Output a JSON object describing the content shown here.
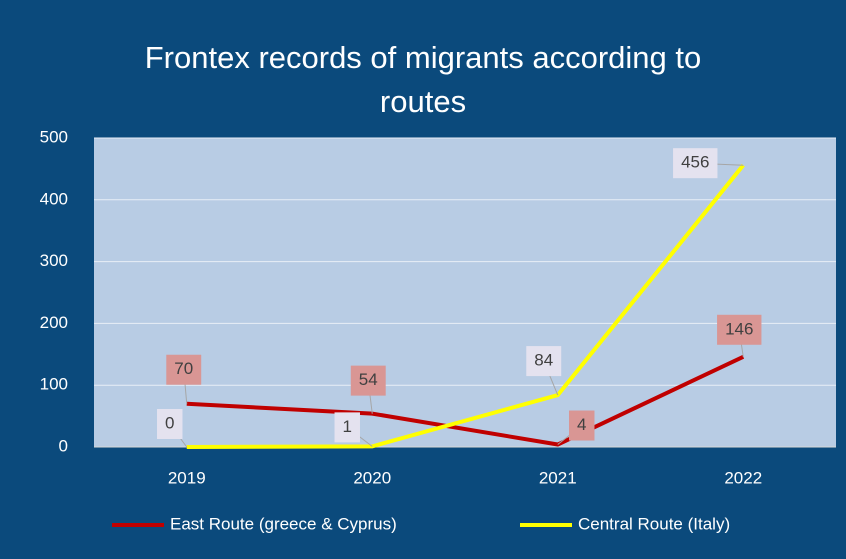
{
  "chart_data": {
    "type": "line",
    "title": "Frontex records of migrants according to routes",
    "categories": [
      "2019",
      "2020",
      "2021",
      "2022"
    ],
    "series": [
      {
        "name": "East Route (greece & Cyprus)",
        "color": "#c00000",
        "values": [
          70,
          54,
          4,
          146
        ]
      },
      {
        "name": "Central Route (Italy)",
        "color": "#ffff00",
        "values": [
          0,
          1,
          84,
          456
        ]
      }
    ],
    "ylim": [
      0,
      500
    ],
    "yticks": [
      0,
      100,
      200,
      300,
      400,
      500
    ],
    "grid": true,
    "legend": "bottom"
  }
}
